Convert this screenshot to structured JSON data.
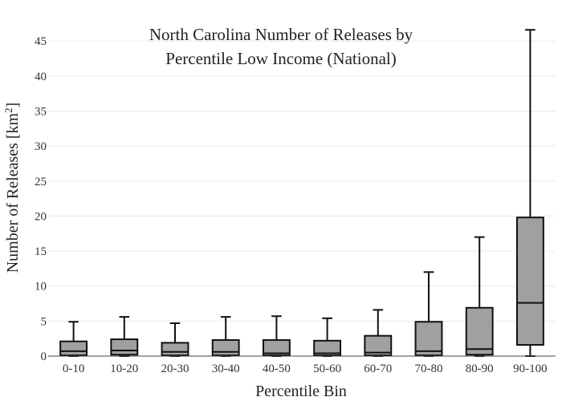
{
  "chart_data": {
    "type": "box",
    "title_lines": [
      "North Carolina Number of Releases by",
      "Percentile Low Income (National)"
    ],
    "xlabel": "Percentile Bin",
    "ylabel_main": "Number of Releases  [km",
    "ylabel_sup": "2",
    "ylabel_end": "]",
    "ylim": [
      0,
      48
    ],
    "yticks": [
      0,
      5,
      10,
      15,
      20,
      25,
      30,
      35,
      40,
      45
    ],
    "grid": true,
    "box_color": "#a0a0a0",
    "line_color": "#111111",
    "categories": [
      "0-10",
      "10-20",
      "20-30",
      "30-40",
      "40-50",
      "50-60",
      "60-70",
      "70-80",
      "80-90",
      "90-100"
    ],
    "boxes": [
      {
        "whisker_low": 0.0,
        "q1": 0.1,
        "median": 0.7,
        "q3": 2.1,
        "whisker_high": 4.9
      },
      {
        "whisker_low": 0.0,
        "q1": 0.2,
        "median": 0.8,
        "q3": 2.4,
        "whisker_high": 5.6
      },
      {
        "whisker_low": 0.0,
        "q1": 0.1,
        "median": 0.6,
        "q3": 1.9,
        "whisker_high": 4.7
      },
      {
        "whisker_low": 0.0,
        "q1": 0.1,
        "median": 0.6,
        "q3": 2.3,
        "whisker_high": 5.6
      },
      {
        "whisker_low": 0.0,
        "q1": 0.1,
        "median": 0.4,
        "q3": 2.3,
        "whisker_high": 5.7
      },
      {
        "whisker_low": 0.0,
        "q1": 0.1,
        "median": 0.4,
        "q3": 2.2,
        "whisker_high": 5.4
      },
      {
        "whisker_low": 0.0,
        "q1": 0.1,
        "median": 0.5,
        "q3": 2.9,
        "whisker_high": 6.6
      },
      {
        "whisker_low": 0.0,
        "q1": 0.1,
        "median": 0.7,
        "q3": 4.9,
        "whisker_high": 12.0
      },
      {
        "whisker_low": 0.0,
        "q1": 0.2,
        "median": 1.0,
        "q3": 6.9,
        "whisker_high": 17.0
      },
      {
        "whisker_low": 0.0,
        "q1": 1.6,
        "median": 7.6,
        "q3": 19.8,
        "whisker_high": 46.6
      }
    ]
  }
}
